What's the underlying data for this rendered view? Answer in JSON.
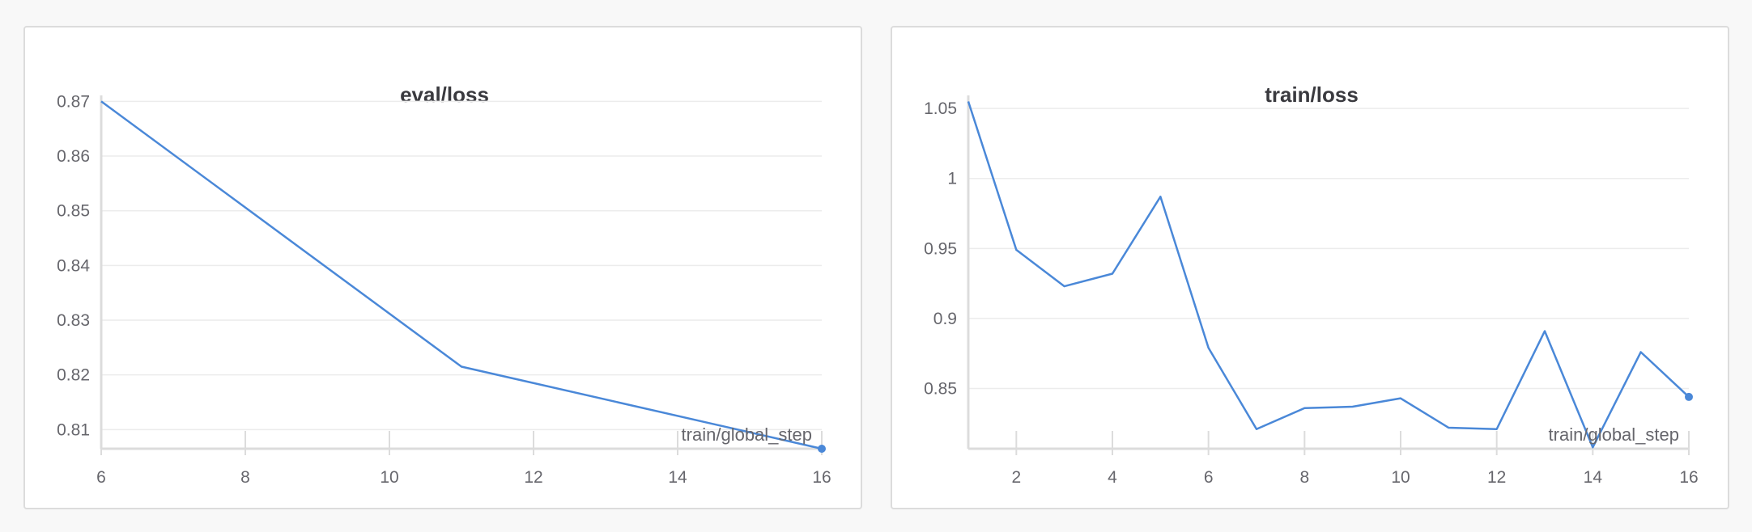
{
  "chart_data": [
    {
      "type": "line",
      "title": "eval/loss",
      "xlabel": "train/global_step",
      "ylabel": "",
      "xlim": [
        6,
        16
      ],
      "ylim": [
        0.8065,
        0.8705
      ],
      "x_ticks": [
        6,
        8,
        10,
        12,
        14,
        16
      ],
      "y_ticks": [
        0.81,
        0.82,
        0.83,
        0.84,
        0.85,
        0.86,
        0.87
      ],
      "y_tick_labels": [
        "0.81",
        "0.82",
        "0.83",
        "0.84",
        "0.85",
        "0.86",
        "0.87"
      ],
      "grid": true,
      "legend": "none",
      "series": [
        {
          "color": "#4a88d8",
          "x": [
            6,
            11,
            16
          ],
          "y": [
            0.87,
            0.8215,
            0.8065
          ]
        }
      ]
    },
    {
      "type": "line",
      "title": "train/loss",
      "xlabel": "train/global_step",
      "ylabel": "",
      "xlim": [
        1,
        16
      ],
      "ylim": [
        0.807,
        1.057
      ],
      "x_ticks": [
        2,
        4,
        6,
        8,
        10,
        12,
        14,
        16
      ],
      "y_ticks": [
        0.85,
        0.9,
        0.95,
        1,
        1.05
      ],
      "y_tick_labels": [
        "0.85",
        "0.9",
        "0.95",
        "1",
        "1.05"
      ],
      "grid": true,
      "legend": "none",
      "series": [
        {
          "color": "#4a88d8",
          "x": [
            1,
            2,
            3,
            4,
            5,
            6,
            7,
            8,
            9,
            10,
            11,
            12,
            13,
            14,
            15,
            16
          ],
          "y": [
            1.055,
            0.949,
            0.923,
            0.932,
            0.987,
            0.879,
            0.821,
            0.836,
            0.837,
            0.843,
            0.822,
            0.821,
            0.891,
            0.808,
            0.876,
            0.844
          ]
        }
      ]
    }
  ]
}
